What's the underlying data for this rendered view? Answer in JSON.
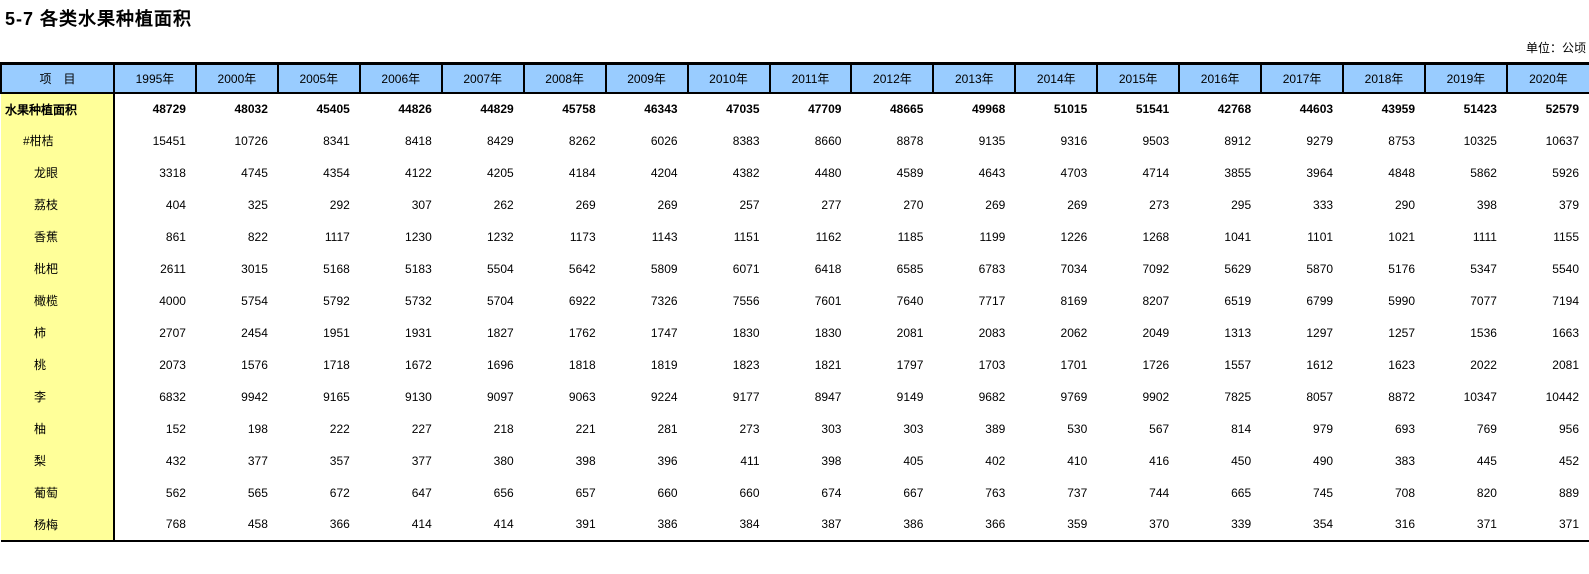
{
  "page": {
    "title": "5-7 各类水果种植面积",
    "unit_note": "单位：公顷"
  },
  "colors": {
    "header_bg": "#99CCFF",
    "label_bg": "#FFFF99",
    "border_color": "#000000",
    "text_color": "#000000",
    "page_bg": "#FFFFFF"
  },
  "table": {
    "header": {
      "item_label": "项　目",
      "years": [
        "1995年",
        "2000年",
        "2005年",
        "2006年",
        "2007年",
        "2008年",
        "2009年",
        "2010年",
        "2011年",
        "2012年",
        "2013年",
        "2014年",
        "2015年",
        "2016年",
        "2017年",
        "2018年",
        "2019年",
        "2020年"
      ]
    },
    "rows": [
      {
        "label": "水果种植面积",
        "bold": true,
        "indent": 0,
        "values": [
          48729,
          48032,
          45405,
          44826,
          44829,
          45758,
          46343,
          47035,
          47709,
          48665,
          49968,
          51015,
          51541,
          42768,
          44603,
          43959,
          51423,
          52579
        ]
      },
      {
        "label": "#柑桔",
        "bold": false,
        "indent": 1,
        "values": [
          15451,
          10726,
          8341,
          8418,
          8429,
          8262,
          6026,
          8383,
          8660,
          8878,
          9135,
          9316,
          9503,
          8912,
          9279,
          8753,
          10325,
          10637
        ]
      },
      {
        "label": "龙眼",
        "bold": false,
        "indent": 2,
        "values": [
          3318,
          4745,
          4354,
          4122,
          4205,
          4184,
          4204,
          4382,
          4480,
          4589,
          4643,
          4703,
          4714,
          3855,
          3964,
          4848,
          5862,
          5926
        ]
      },
      {
        "label": "荔枝",
        "bold": false,
        "indent": 2,
        "values": [
          404,
          325,
          292,
          307,
          262,
          269,
          269,
          257,
          277,
          270,
          269,
          269,
          273,
          295,
          333,
          290,
          398,
          379
        ]
      },
      {
        "label": "香蕉",
        "bold": false,
        "indent": 2,
        "values": [
          861,
          822,
          1117,
          1230,
          1232,
          1173,
          1143,
          1151,
          1162,
          1185,
          1199,
          1226,
          1268,
          1041,
          1101,
          1021,
          1111,
          1155
        ]
      },
      {
        "label": "枇杷",
        "bold": false,
        "indent": 2,
        "values": [
          2611,
          3015,
          5168,
          5183,
          5504,
          5642,
          5809,
          6071,
          6418,
          6585,
          6783,
          7034,
          7092,
          5629,
          5870,
          5176,
          5347,
          5540
        ]
      },
      {
        "label": "橄榄",
        "bold": false,
        "indent": 2,
        "values": [
          4000,
          5754,
          5792,
          5732,
          5704,
          6922,
          7326,
          7556,
          7601,
          7640,
          7717,
          8169,
          8207,
          6519,
          6799,
          5990,
          7077,
          7194
        ]
      },
      {
        "label": "柿",
        "bold": false,
        "indent": 2,
        "values": [
          2707,
          2454,
          1951,
          1931,
          1827,
          1762,
          1747,
          1830,
          1830,
          2081,
          2083,
          2062,
          2049,
          1313,
          1297,
          1257,
          1536,
          1663
        ]
      },
      {
        "label": "桃",
        "bold": false,
        "indent": 2,
        "values": [
          2073,
          1576,
          1718,
          1672,
          1696,
          1818,
          1819,
          1823,
          1821,
          1797,
          1703,
          1701,
          1726,
          1557,
          1612,
          1623,
          2022,
          2081
        ]
      },
      {
        "label": "李",
        "bold": false,
        "indent": 2,
        "values": [
          6832,
          9942,
          9165,
          9130,
          9097,
          9063,
          9224,
          9177,
          8947,
          9149,
          9682,
          9769,
          9902,
          7825,
          8057,
          8872,
          10347,
          10442
        ]
      },
      {
        "label": "柚",
        "bold": false,
        "indent": 2,
        "values": [
          152,
          198,
          222,
          227,
          218,
          221,
          281,
          273,
          303,
          303,
          389,
          530,
          567,
          814,
          979,
          693,
          769,
          956
        ]
      },
      {
        "label": "梨",
        "bold": false,
        "indent": 2,
        "values": [
          432,
          377,
          357,
          377,
          380,
          398,
          396,
          411,
          398,
          405,
          402,
          410,
          416,
          450,
          490,
          383,
          445,
          452
        ]
      },
      {
        "label": "葡萄",
        "bold": false,
        "indent": 2,
        "values": [
          562,
          565,
          672,
          647,
          656,
          657,
          660,
          660,
          674,
          667,
          763,
          737,
          744,
          665,
          745,
          708,
          820,
          889
        ]
      },
      {
        "label": "杨梅",
        "bold": false,
        "indent": 2,
        "values": [
          768,
          458,
          366,
          414,
          414,
          391,
          386,
          384,
          387,
          386,
          366,
          359,
          370,
          339,
          354,
          316,
          371,
          371
        ]
      }
    ]
  }
}
